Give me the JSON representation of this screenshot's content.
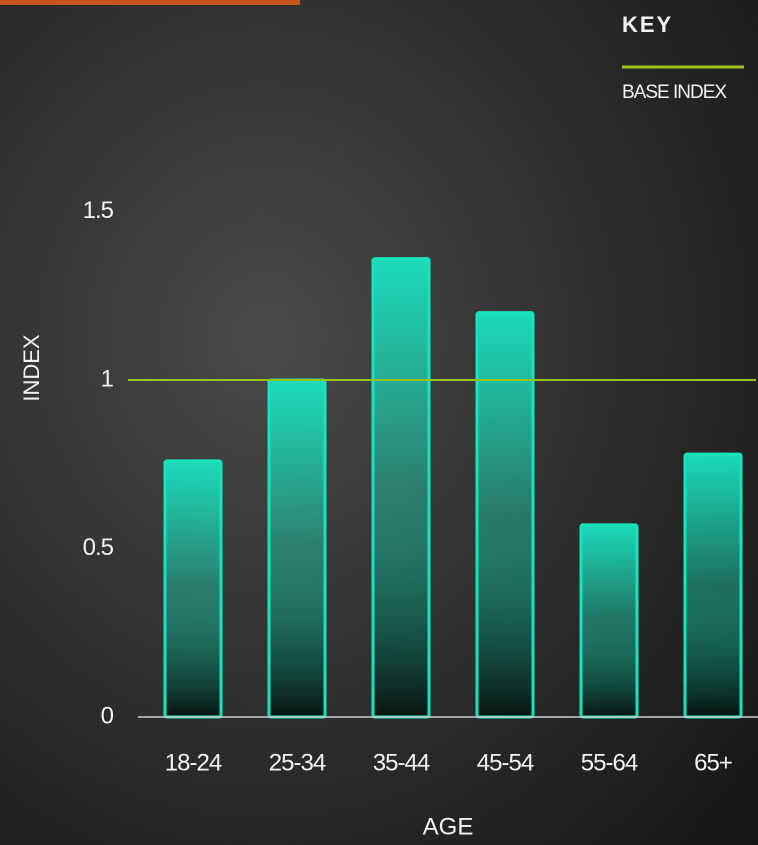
{
  "chart_data": {
    "type": "bar",
    "categories": [
      "18-24",
      "25-34",
      "35-44",
      "45-54",
      "55-64",
      "65+"
    ],
    "values": [
      0.76,
      1.0,
      1.36,
      1.2,
      0.57,
      0.78
    ],
    "color": "#19e3be",
    "ylim": [
      0,
      2
    ],
    "yticks": [
      0,
      0.5,
      1,
      1.5
    ],
    "xlabel": "AGE",
    "ylabel": "INDEX",
    "legend_title": "KEY",
    "reference": {
      "label": "BASE INDEX",
      "value": 1,
      "color": "#9cc21f"
    }
  }
}
